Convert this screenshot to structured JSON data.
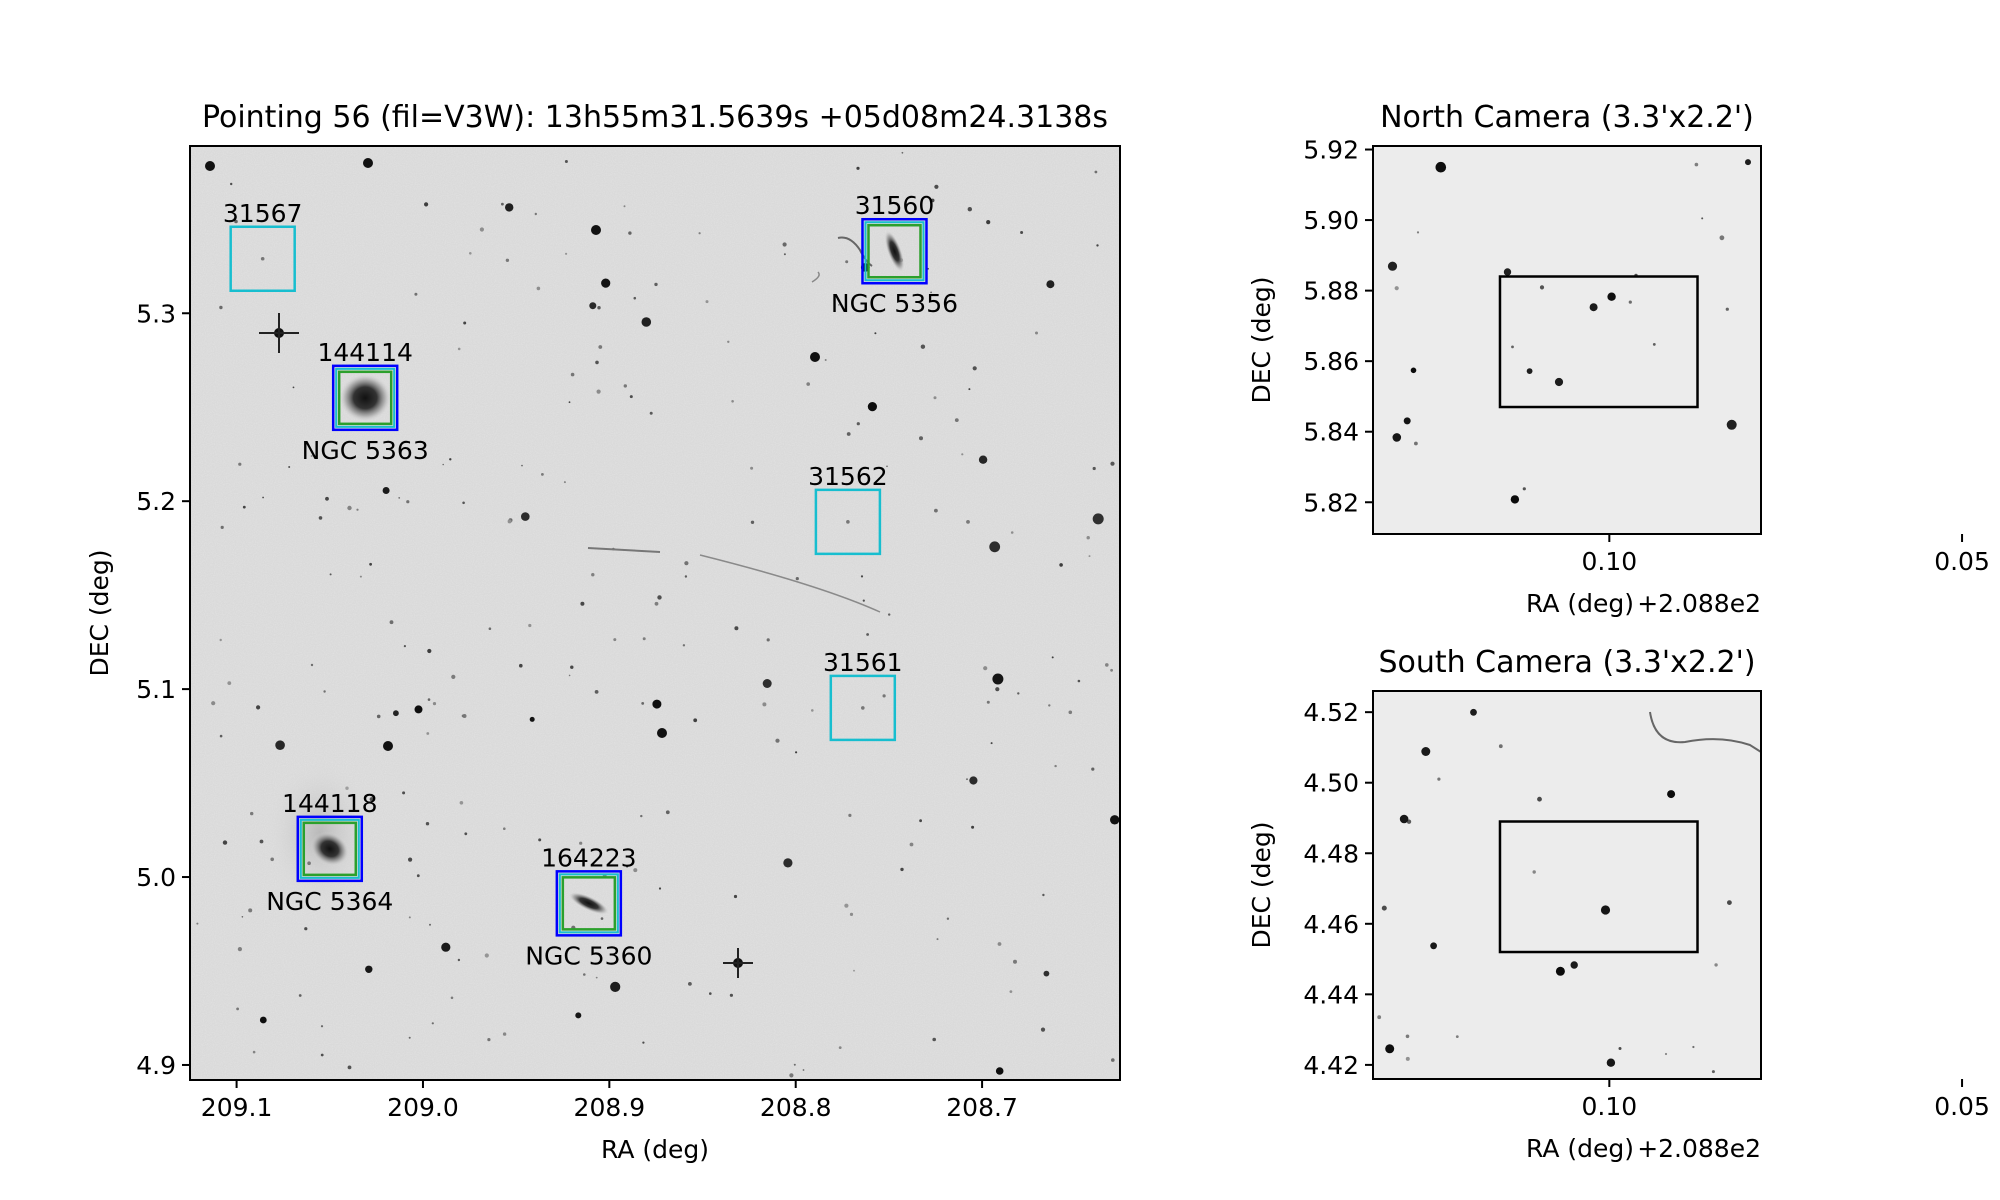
{
  "chart_data": [
    {
      "id": "main",
      "type": "scatter",
      "title": "Pointing 56 (fil=V3W): 13h55m31.5639s +05d08m24.3138s",
      "xlabel": "RA (deg)",
      "ylabel": "DEC (deg)",
      "xlim": [
        209.125,
        208.626
      ],
      "ylim": [
        4.892,
        5.389
      ],
      "xticks": [
        "209.1",
        "209.0",
        "208.9",
        "208.8",
        "208.7"
      ],
      "xtick_values": [
        209.1,
        209.0,
        208.9,
        208.8,
        208.7
      ],
      "yticks": [
        "4.9",
        "5.0",
        "5.1",
        "5.2",
        "5.3"
      ],
      "ytick_values": [
        4.9,
        5.0,
        5.1,
        5.2,
        5.3
      ],
      "colors": {
        "cyan": "#17becf",
        "green": "#2ca02c",
        "blue": "#0000ff"
      },
      "targets": [
        {
          "id": "31567",
          "ra": 209.086,
          "dec": 5.329,
          "kind": "cyan",
          "ngc": ""
        },
        {
          "id": "31560",
          "ra": 208.747,
          "dec": 5.333,
          "kind": "galaxy",
          "ngc": "NGC 5356"
        },
        {
          "id": "144114",
          "ra": 209.031,
          "dec": 5.255,
          "kind": "galaxy",
          "ngc": "NGC 5363"
        },
        {
          "id": "31562",
          "ra": 208.772,
          "dec": 5.189,
          "kind": "cyan",
          "ngc": ""
        },
        {
          "id": "31561",
          "ra": 208.764,
          "dec": 5.09,
          "kind": "cyan",
          "ngc": ""
        },
        {
          "id": "144118",
          "ra": 209.05,
          "dec": 5.015,
          "kind": "galaxy",
          "ngc": "NGC 5364"
        },
        {
          "id": "164223",
          "ra": 208.911,
          "dec": 4.986,
          "kind": "galaxy",
          "ngc": "NGC 5360"
        }
      ]
    },
    {
      "id": "north",
      "type": "scatter",
      "title": "North Camera (3.3'x2.2')",
      "xlabel": "RA (deg)",
      "ylabel": "DEC (deg)",
      "offset_label": "+2.088e2",
      "xlim": [
        0.1335,
        0.0785
      ],
      "ylim": [
        5.811,
        5.921
      ],
      "xticks": [
        "0.10",
        "0.05"
      ],
      "xtick_values": [
        0.1,
        0.05
      ],
      "yticks": [
        "5.82",
        "5.84",
        "5.86",
        "5.88",
        "5.90",
        "5.92"
      ],
      "ytick_values": [
        5.82,
        5.84,
        5.86,
        5.88,
        5.9,
        5.92
      ],
      "footprint": {
        "ra": [
          0.1155,
          0.0875
        ],
        "dec": [
          5.847,
          5.884
        ]
      }
    },
    {
      "id": "south",
      "type": "scatter",
      "title": "South Camera (3.3'x2.2')",
      "xlabel": "RA (deg)",
      "ylabel": "DEC (deg)",
      "offset_label": "+2.088e2",
      "xlim": [
        0.1335,
        0.0785
      ],
      "ylim": [
        4.416,
        4.526
      ],
      "xticks": [
        "0.10",
        "0.05"
      ],
      "xtick_values": [
        0.1,
        0.05
      ],
      "yticks": [
        "4.42",
        "4.44",
        "4.46",
        "4.48",
        "4.50",
        "4.52"
      ],
      "ytick_values": [
        4.42,
        4.44,
        4.46,
        4.48,
        4.5,
        4.52
      ],
      "footprint": {
        "ra": [
          0.1155,
          0.0875
        ],
        "dec": [
          4.452,
          4.489
        ]
      }
    }
  ]
}
